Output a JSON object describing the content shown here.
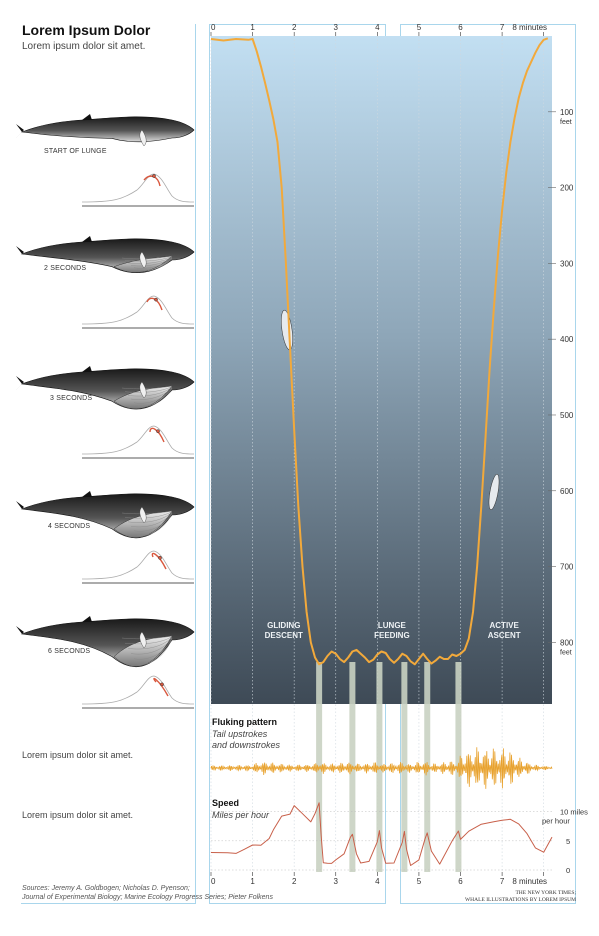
{
  "header": {
    "title": "Lorem Ipsum Dolor",
    "subtitle": "Lorem ipsum dolor sit amet."
  },
  "whale_panels": [
    {
      "caption": "START OF LUNGE"
    },
    {
      "caption": "2 SECONDS"
    },
    {
      "caption": "3 SECONDS"
    },
    {
      "caption": "4 SECONDS"
    },
    {
      "caption": "6 SECONDS"
    }
  ],
  "side_notes": [
    "Lorem ipsum dolor sit amet.",
    "Lorem ipsum dolor sit amet."
  ],
  "footer": {
    "source_line1": "Sources: Jeremy A. Goldbogen; Nicholas D. Pyenson;",
    "source_line2": "Journal of Experimental Biology; Marine Ecology Progress Series; Pieter Folkens",
    "credit_line1": "THE NEW YORK TIMES;",
    "credit_line2": "WHALE ILLUSTRATIONS BY LOREM IPSUM"
  },
  "colors": {
    "depth_line": "#f2a93b",
    "fluke_line": "#e8a22e",
    "speed_line": "#c8604a",
    "sea_top": "#c2dff2",
    "sea_bottom": "#3e4a56",
    "lunge_band": "#c9d1c2",
    "frame": "#a9d6ec"
  },
  "chart_data": [
    {
      "type": "line",
      "name": "dive-depth",
      "xlabel_unit": "minutes",
      "ylabel_unit": "feet",
      "xlim": [
        0,
        8.2
      ],
      "ylim": [
        0,
        880
      ],
      "x_ticks": [
        "0",
        "1",
        "2",
        "3",
        "4",
        "5",
        "6",
        "7",
        "8 minutes"
      ],
      "x_tick_values": [
        0,
        1,
        2,
        3,
        4,
        5,
        6,
        7,
        8
      ],
      "y_ticks": [
        {
          "value": 100,
          "label": "100",
          "sub": "feet"
        },
        {
          "value": 200,
          "label": "200",
          "sub": ""
        },
        {
          "value": 300,
          "label": "300",
          "sub": ""
        },
        {
          "value": 400,
          "label": "400",
          "sub": ""
        },
        {
          "value": 500,
          "label": "500",
          "sub": ""
        },
        {
          "value": 600,
          "label": "600",
          "sub": ""
        },
        {
          "value": 700,
          "label": "700",
          "sub": ""
        },
        {
          "value": 800,
          "label": "800",
          "sub": "feet"
        }
      ],
      "phases": [
        {
          "label_line1": "GLIDING",
          "label_line2": "DESCENT",
          "x": 1.75
        },
        {
          "label_line1": "LUNGE",
          "label_line2": "FEEDING",
          "x": 4.35
        },
        {
          "label_line1": "ACTIVE",
          "label_line2": "ASCENT",
          "x": 7.05
        }
      ],
      "lunges_x": [
        2.6,
        3.4,
        4.05,
        4.65,
        5.2,
        5.95
      ],
      "x": [
        0,
        0.3,
        0.6,
        0.9,
        1.0,
        1.1,
        1.2,
        1.3,
        1.4,
        1.5,
        1.6,
        1.7,
        1.8,
        1.9,
        2.0,
        2.1,
        2.2,
        2.3,
        2.4,
        2.5,
        2.6,
        2.7,
        2.8,
        2.9,
        3.0,
        3.1,
        3.2,
        3.3,
        3.4,
        3.5,
        3.6,
        3.7,
        3.8,
        3.9,
        4.0,
        4.1,
        4.2,
        4.3,
        4.4,
        4.5,
        4.6,
        4.7,
        4.8,
        4.9,
        5.0,
        5.1,
        5.2,
        5.3,
        5.4,
        5.5,
        5.6,
        5.7,
        5.8,
        5.9,
        6.0,
        6.1,
        6.2,
        6.3,
        6.4,
        6.5,
        6.6,
        6.7,
        6.8,
        6.9,
        7.0,
        7.1,
        7.2,
        7.3,
        7.4,
        7.5,
        7.6,
        7.7,
        7.8,
        7.9,
        8.0,
        8.1
      ],
      "y": [
        4,
        6,
        4,
        5,
        4,
        20,
        40,
        62,
        85,
        110,
        140,
        200,
        300,
        410,
        520,
        620,
        700,
        760,
        800,
        820,
        829,
        826,
        818,
        812,
        815,
        822,
        826,
        820,
        812,
        810,
        815,
        820,
        826,
        823,
        816,
        812,
        814,
        822,
        827,
        822,
        815,
        818,
        825,
        829,
        822,
        815,
        822,
        828,
        824,
        819,
        822,
        822,
        816,
        818,
        815,
        810,
        795,
        760,
        700,
        620,
        530,
        440,
        360,
        290,
        230,
        180,
        140,
        108,
        82,
        62,
        46,
        34,
        22,
        12,
        5,
        3
      ]
    },
    {
      "type": "line",
      "name": "fluking-pattern",
      "title": "Fluking pattern",
      "subtitle_line1": "Tail upstrokes",
      "subtitle_line2": "and downstrokes",
      "xlim": [
        0,
        8.2
      ],
      "note": "oscillation amplitude by time (relative units, 0-1)",
      "amplitude_x": [
        0,
        1.0,
        1.2,
        1.5,
        2.0,
        2.5,
        2.6,
        2.8,
        3.4,
        3.5,
        4.05,
        4.1,
        4.65,
        4.7,
        5.2,
        5.3,
        5.95,
        6.0,
        6.2,
        6.5,
        6.8,
        7.0,
        7.2,
        7.4,
        7.6,
        7.8,
        8.0,
        8.2
      ],
      "amplitude_y": [
        0.12,
        0.15,
        0.35,
        0.25,
        0.15,
        0.2,
        0.35,
        0.2,
        0.3,
        0.2,
        0.3,
        0.2,
        0.3,
        0.2,
        0.35,
        0.2,
        0.4,
        0.6,
        0.9,
        1.0,
        0.95,
        1.0,
        0.85,
        0.5,
        0.3,
        0.15,
        0.1,
        0.08
      ]
    },
    {
      "type": "line",
      "name": "speed",
      "title": "Speed",
      "subtitle": "Miles per hour",
      "xlim": [
        0,
        8.2
      ],
      "ylim": [
        0,
        12
      ],
      "y_ticks": [
        {
          "value": 0,
          "label": "0"
        },
        {
          "value": 5,
          "label": "5"
        },
        {
          "value": 10,
          "label": "10 miles",
          "sub": "per hour"
        }
      ],
      "x_ticks": [
        "0",
        "1",
        "2",
        "3",
        "4",
        "5",
        "6",
        "7",
        "8 minutes"
      ],
      "x_tick_values": [
        0,
        1,
        2,
        3,
        4,
        5,
        6,
        7,
        8
      ],
      "x": [
        0,
        0.2,
        0.4,
        0.6,
        0.8,
        1.0,
        1.2,
        1.4,
        1.5,
        1.7,
        1.9,
        2.0,
        2.2,
        2.4,
        2.5,
        2.6,
        2.65,
        2.7,
        2.8,
        2.9,
        3.0,
        3.2,
        3.35,
        3.4,
        3.5,
        3.6,
        3.8,
        4.0,
        4.05,
        4.1,
        4.2,
        4.4,
        4.6,
        4.65,
        4.7,
        4.8,
        5.0,
        5.15,
        5.2,
        5.3,
        5.5,
        5.8,
        5.95,
        6.0,
        6.2,
        6.5,
        6.8,
        7.0,
        7.2,
        7.4,
        7.6,
        7.8,
        8.0,
        8.2
      ],
      "y": [
        3,
        2.8,
        3.2,
        2.7,
        3.5,
        4.5,
        4.0,
        5.5,
        7.0,
        9.0,
        9.8,
        11.0,
        9.5,
        8.5,
        9.5,
        11.5,
        6.0,
        1.0,
        1.3,
        1.2,
        1.5,
        3.0,
        5.5,
        6.0,
        3.0,
        1.0,
        1.5,
        5.0,
        6.5,
        4.0,
        1.2,
        1.0,
        5.0,
        6.5,
        3.5,
        1.0,
        1.5,
        5.5,
        6.5,
        3.0,
        1.2,
        5.0,
        6.5,
        5.5,
        6.5,
        7.8,
        8.5,
        8.3,
        8.8,
        8.0,
        6.0,
        4.0,
        3.0,
        5.5
      ]
    }
  ]
}
